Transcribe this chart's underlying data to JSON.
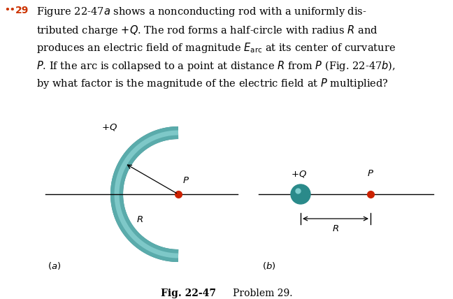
{
  "bg_color": "#ffffff",
  "text_color": "#000000",
  "bullet_color": "#cc3300",
  "arc_outer_color": "#5aabab",
  "arc_inner_color": "#3a8888",
  "dot_red_color": "#cc2200",
  "dot_teal_color": "#2a8a8a",
  "line_color": "#000000",
  "arrow_color": "#000000"
}
